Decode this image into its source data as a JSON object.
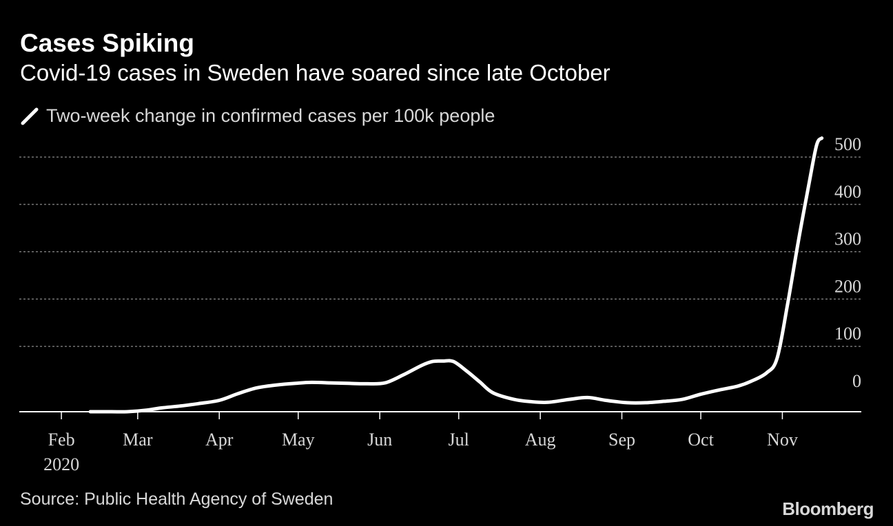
{
  "header": {
    "title": "Cases Spiking",
    "subtitle": "Covid-19 cases in Sweden have soared since late October"
  },
  "legend": {
    "icon": "line-swatch-icon",
    "label": "Two-week change in confirmed cases per 100k people"
  },
  "footer": {
    "source": "Source: Public Health Agency of Sweden",
    "brand": "Bloomberg"
  },
  "colors": {
    "background": "#000000",
    "line": "#ffffff",
    "text": "#d8d8d8",
    "grid": "#8a8a8a"
  },
  "chart_data": {
    "type": "line",
    "title": "Cases Spiking",
    "subtitle": "Covid-19 cases in Sweden have soared since late October",
    "xlabel": "",
    "ylabel": "",
    "x_ticks": [
      {
        "label": "Feb",
        "date": "2020-02-01",
        "sublabel": "2020"
      },
      {
        "label": "Mar",
        "date": "2020-03-01"
      },
      {
        "label": "Apr",
        "date": "2020-04-01"
      },
      {
        "label": "May",
        "date": "2020-05-01"
      },
      {
        "label": "Jun",
        "date": "2020-06-01"
      },
      {
        "label": "Jul",
        "date": "2020-07-01"
      },
      {
        "label": "Aug",
        "date": "2020-08-01"
      },
      {
        "label": "Sep",
        "date": "2020-09-01"
      },
      {
        "label": "Oct",
        "date": "2020-10-01"
      },
      {
        "label": "Nov",
        "date": "2020-11-01"
      }
    ],
    "xlim": [
      "2020-01-16",
      "2020-12-01"
    ],
    "ylim": [
      -38,
      570
    ],
    "y_ticks": [
      0,
      100,
      200,
      300,
      400,
      500
    ],
    "y_axis_position": "right",
    "grid": "horizontal dotted",
    "legend_position": "top-left",
    "series": [
      {
        "name": "Two-week change in confirmed cases per 100k people",
        "color": "#ffffff",
        "points": [
          {
            "x": "2020-02-12",
            "y": -38
          },
          {
            "x": "2020-02-20",
            "y": -38
          },
          {
            "x": "2020-02-26",
            "y": -38
          },
          {
            "x": "2020-03-04",
            "y": -35
          },
          {
            "x": "2020-03-10",
            "y": -30
          },
          {
            "x": "2020-03-17",
            "y": -26
          },
          {
            "x": "2020-03-24",
            "y": -21
          },
          {
            "x": "2020-04-01",
            "y": -14
          },
          {
            "x": "2020-04-08",
            "y": 0
          },
          {
            "x": "2020-04-15",
            "y": 12
          },
          {
            "x": "2020-04-22",
            "y": 18
          },
          {
            "x": "2020-04-30",
            "y": 22
          },
          {
            "x": "2020-05-06",
            "y": 24
          },
          {
            "x": "2020-05-13",
            "y": 23
          },
          {
            "x": "2020-05-20",
            "y": 22
          },
          {
            "x": "2020-05-27",
            "y": 21
          },
          {
            "x": "2020-06-03",
            "y": 23
          },
          {
            "x": "2020-06-10",
            "y": 40
          },
          {
            "x": "2020-06-17",
            "y": 60
          },
          {
            "x": "2020-06-21",
            "y": 68
          },
          {
            "x": "2020-06-25",
            "y": 69
          },
          {
            "x": "2020-06-29",
            "y": 68
          },
          {
            "x": "2020-07-04",
            "y": 48
          },
          {
            "x": "2020-07-09",
            "y": 25
          },
          {
            "x": "2020-07-14",
            "y": 2
          },
          {
            "x": "2020-07-22",
            "y": -12
          },
          {
            "x": "2020-07-29",
            "y": -17
          },
          {
            "x": "2020-08-04",
            "y": -18
          },
          {
            "x": "2020-08-12",
            "y": -12
          },
          {
            "x": "2020-08-19",
            "y": -8
          },
          {
            "x": "2020-08-26",
            "y": -14
          },
          {
            "x": "2020-09-03",
            "y": -19
          },
          {
            "x": "2020-09-10",
            "y": -19
          },
          {
            "x": "2020-09-17",
            "y": -16
          },
          {
            "x": "2020-09-24",
            "y": -12
          },
          {
            "x": "2020-10-01",
            "y": -1
          },
          {
            "x": "2020-10-08",
            "y": 8
          },
          {
            "x": "2020-10-15",
            "y": 16
          },
          {
            "x": "2020-10-20",
            "y": 26
          },
          {
            "x": "2020-10-26",
            "y": 44
          },
          {
            "x": "2020-10-30",
            "y": 75
          },
          {
            "x": "2020-11-03",
            "y": 190
          },
          {
            "x": "2020-11-07",
            "y": 320
          },
          {
            "x": "2020-11-11",
            "y": 440
          },
          {
            "x": "2020-11-14",
            "y": 525
          },
          {
            "x": "2020-11-16",
            "y": 540
          }
        ]
      }
    ]
  }
}
